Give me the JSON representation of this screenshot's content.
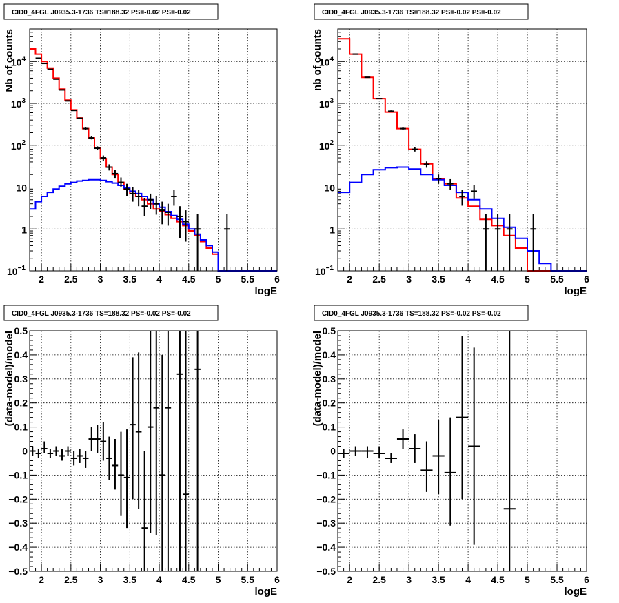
{
  "chart_data": [
    {
      "type": "line",
      "title": "CID0_4FGL J0935.3-1736 TS=188.32 PS=-0.02 PS=-0.02",
      "xlabel": "logE",
      "ylabel": "Nb of counts",
      "xlim": [
        1.8,
        6
      ],
      "ylim": [
        0.1,
        60000
      ],
      "yscale": "log",
      "grid": true,
      "xticks": [
        "2",
        "2.5",
        "3",
        "3.5",
        "4",
        "4.5",
        "5",
        "5.5",
        "6"
      ],
      "yticks": [
        {
          "mantissa": "10",
          "exp": "−1"
        },
        {
          "mantissa": "1",
          "exp": ""
        },
        {
          "mantissa": "10",
          "exp": ""
        },
        {
          "mantissa": "10",
          "exp": "2"
        },
        {
          "mantissa": "10",
          "exp": "3"
        },
        {
          "mantissa": "10",
          "exp": "4"
        }
      ],
      "bin_edges": [
        1.8,
        1.9,
        2.0,
        2.1,
        2.2,
        2.3,
        2.4,
        2.5,
        2.6,
        2.7,
        2.8,
        2.9,
        3.0,
        3.1,
        3.2,
        3.3,
        3.4,
        3.5,
        3.6,
        3.7,
        3.8,
        3.9,
        4.0,
        4.1,
        4.2,
        4.3,
        4.4,
        4.5,
        4.6,
        4.7,
        4.8,
        4.9,
        5.0,
        5.1,
        5.2,
        5.3,
        5.4,
        5.5,
        5.6,
        5.7,
        5.8,
        5.9,
        6.0
      ],
      "series": [
        {
          "color": "#ff0000",
          "values": [
            20000,
            15000,
            10000,
            7000,
            4000,
            2200,
            1200,
            700,
            450,
            250,
            150,
            85,
            48,
            30,
            20,
            13,
            9,
            7,
            6,
            5,
            4,
            3,
            2.6,
            2.2,
            1.8,
            1.5,
            1.2,
            0.9,
            0.7,
            0.5,
            0.35,
            0.25,
            0.1,
            0.1,
            0.1,
            0.1,
            0.1,
            0.1,
            0.1,
            0.1,
            0.1,
            0.1
          ]
        },
        {
          "color": "#0000ff",
          "values": [
            3,
            4.5,
            6,
            7.5,
            9,
            10.5,
            12,
            13,
            14,
            14.5,
            15,
            15,
            14.5,
            13.5,
            12.5,
            11,
            9.5,
            8,
            7,
            6,
            5,
            4,
            3.3,
            2.6,
            2.1,
            1.7,
            1.3,
            1.0,
            0.75,
            0.55,
            0.4,
            0.28,
            0.1,
            0.1,
            0.1,
            0.1,
            0.1,
            0.1,
            0.1,
            0.1,
            0.1,
            0.1
          ]
        }
      ],
      "points": [
        {
          "x": 1.95,
          "y": 12000,
          "lo": 11800,
          "hi": 12200
        },
        {
          "x": 2.05,
          "y": 9000,
          "lo": 8850,
          "hi": 9150
        },
        {
          "x": 2.15,
          "y": 6500,
          "lo": 6400,
          "hi": 6600
        },
        {
          "x": 2.25,
          "y": 3800,
          "lo": 3700,
          "hi": 3900
        },
        {
          "x": 2.35,
          "y": 2100,
          "lo": 2050,
          "hi": 2150
        },
        {
          "x": 2.45,
          "y": 1150,
          "lo": 1120,
          "hi": 1180
        },
        {
          "x": 2.55,
          "y": 680,
          "lo": 660,
          "hi": 700
        },
        {
          "x": 2.65,
          "y": 440,
          "lo": 420,
          "hi": 460
        },
        {
          "x": 2.75,
          "y": 250,
          "lo": 235,
          "hi": 265
        },
        {
          "x": 2.85,
          "y": 150,
          "lo": 138,
          "hi": 162
        },
        {
          "x": 2.95,
          "y": 85,
          "lo": 76,
          "hi": 94
        },
        {
          "x": 3.05,
          "y": 50,
          "lo": 43,
          "hi": 57
        },
        {
          "x": 3.15,
          "y": 30,
          "lo": 25,
          "hi": 35
        },
        {
          "x": 3.25,
          "y": 21,
          "lo": 16,
          "hi": 26
        },
        {
          "x": 3.35,
          "y": 13,
          "lo": 10,
          "hi": 17
        },
        {
          "x": 3.45,
          "y": 9,
          "lo": 6,
          "hi": 12
        },
        {
          "x": 3.55,
          "y": 7,
          "lo": 4.5,
          "hi": 10
        },
        {
          "x": 3.65,
          "y": 6,
          "lo": 3.5,
          "hi": 8.5
        },
        {
          "x": 3.75,
          "y": 3.5,
          "lo": 2,
          "hi": 5.5
        },
        {
          "x": 3.85,
          "y": 5,
          "lo": 3,
          "hi": 7
        },
        {
          "x": 3.95,
          "y": 4,
          "lo": 2.2,
          "hi": 6
        },
        {
          "x": 4.05,
          "y": 2.8,
          "lo": 1.3,
          "hi": 4.5
        },
        {
          "x": 4.15,
          "y": 2.5,
          "lo": 1.2,
          "hi": 4
        },
        {
          "x": 4.25,
          "y": 6,
          "lo": 3.6,
          "hi": 8.5
        },
        {
          "x": 4.35,
          "y": 2,
          "lo": 0.6,
          "hi": 3.5
        },
        {
          "x": 4.45,
          "y": 1.5,
          "lo": 0.5,
          "hi": 2.8
        },
        {
          "x": 4.65,
          "y": 1,
          "lo": 0.1,
          "hi": 2.3
        },
        {
          "x": 5.15,
          "y": 1,
          "lo": 0.1,
          "hi": 2.3
        }
      ]
    },
    {
      "type": "line",
      "title": "CID0_4FGL J0935.3-1736 TS=188.32 PS=-0.02 PS=-0.02",
      "xlabel": "logE",
      "ylabel": "nb of counts",
      "xlim": [
        1.8,
        6
      ],
      "ylim": [
        0.1,
        60000
      ],
      "yscale": "log",
      "grid": true,
      "xticks": [
        "2",
        "2.5",
        "3",
        "3.5",
        "4",
        "4.5",
        "5",
        "5.5",
        "6"
      ],
      "yticks": [
        {
          "mantissa": "10",
          "exp": "−1"
        },
        {
          "mantissa": "1",
          "exp": ""
        },
        {
          "mantissa": "10",
          "exp": ""
        },
        {
          "mantissa": "10",
          "exp": "2"
        },
        {
          "mantissa": "10",
          "exp": "3"
        },
        {
          "mantissa": "10",
          "exp": "4"
        }
      ],
      "bin_edges": [
        1.8,
        2.0,
        2.2,
        2.4,
        2.6,
        2.8,
        3.0,
        3.2,
        3.4,
        3.6,
        3.8,
        4.0,
        4.2,
        4.4,
        4.6,
        4.8,
        5.0,
        5.2,
        5.4,
        5.6,
        5.8,
        6.0
      ],
      "series": [
        {
          "color": "#ff0000",
          "values": [
            35000,
            15000,
            4200,
            1300,
            620,
            250,
            80,
            36,
            16,
            12,
            5.5,
            3.5,
            1.7,
            1.2,
            0.7,
            0.35,
            0.1,
            0.1,
            0.1,
            0.1,
            0.1
          ]
        },
        {
          "color": "#0000ff",
          "values": [
            7.5,
            13,
            20,
            26,
            29,
            30,
            27,
            20,
            15,
            11,
            7.5,
            5,
            3,
            1.8,
            1.1,
            0.6,
            0.3,
            0.15,
            0.1,
            0.1,
            0.1
          ]
        }
      ],
      "points": [
        {
          "x": 2.1,
          "y": 15000,
          "lo": 14800,
          "hi": 15200
        },
        {
          "x": 2.3,
          "y": 4200,
          "lo": 4100,
          "hi": 4300
        },
        {
          "x": 2.5,
          "y": 1300,
          "lo": 1270,
          "hi": 1330
        },
        {
          "x": 2.7,
          "y": 650,
          "lo": 620,
          "hi": 680
        },
        {
          "x": 2.9,
          "y": 250,
          "lo": 235,
          "hi": 265
        },
        {
          "x": 3.1,
          "y": 80,
          "lo": 71,
          "hi": 89
        },
        {
          "x": 3.3,
          "y": 35,
          "lo": 29,
          "hi": 41
        },
        {
          "x": 3.5,
          "y": 16,
          "lo": 12,
          "hi": 20
        },
        {
          "x": 3.7,
          "y": 12,
          "lo": 8.5,
          "hi": 15.5
        },
        {
          "x": 3.9,
          "y": 6,
          "lo": 3.6,
          "hi": 8.5
        },
        {
          "x": 4.1,
          "y": 8,
          "lo": 5.2,
          "hi": 11
        },
        {
          "x": 4.3,
          "y": 1,
          "lo": 0.1,
          "hi": 2.3
        },
        {
          "x": 4.5,
          "y": 1,
          "lo": 0.1,
          "hi": 2.3
        },
        {
          "x": 4.7,
          "y": 1,
          "lo": 0.1,
          "hi": 2.3
        },
        {
          "x": 5.1,
          "y": 1,
          "lo": 0.1,
          "hi": 2.3
        }
      ]
    },
    {
      "type": "scatter",
      "title": "CID0_4FGL J0935.3-1736 TS=188.32 PS=-0.02 PS=-0.02",
      "xlabel": "logE",
      "ylabel": "(data-model)/model",
      "xlim": [
        1.8,
        6
      ],
      "ylim": [
        -0.5,
        0.5
      ],
      "grid": true,
      "xticks": [
        "2",
        "2.5",
        "3",
        "3.5",
        "4",
        "4.5",
        "5",
        "5.5",
        "6"
      ],
      "yticks": [
        "−0.5",
        "−0.4",
        "−0.3",
        "−0.2",
        "−0.1",
        "0",
        "0.1",
        "0.2",
        "0.3",
        "0.4",
        "0.5"
      ],
      "xerr": 0.05,
      "points": [
        {
          "x": 1.85,
          "y": 0.0,
          "lo": -0.02,
          "hi": 0.02
        },
        {
          "x": 1.95,
          "y": -0.01,
          "lo": -0.03,
          "hi": 0.01
        },
        {
          "x": 2.05,
          "y": 0.01,
          "lo": -0.01,
          "hi": 0.04
        },
        {
          "x": 2.15,
          "y": -0.01,
          "lo": -0.03,
          "hi": 0.01
        },
        {
          "x": 2.25,
          "y": 0.0,
          "lo": -0.02,
          "hi": 0.02
        },
        {
          "x": 2.35,
          "y": -0.02,
          "lo": -0.04,
          "hi": 0.01
        },
        {
          "x": 2.45,
          "y": 0.0,
          "lo": -0.02,
          "hi": 0.02
        },
        {
          "x": 2.55,
          "y": -0.03,
          "lo": -0.06,
          "hi": 0.0
        },
        {
          "x": 2.65,
          "y": -0.02,
          "lo": -0.05,
          "hi": 0.01
        },
        {
          "x": 2.75,
          "y": -0.03,
          "lo": -0.07,
          "hi": 0.0
        },
        {
          "x": 2.85,
          "y": 0.05,
          "lo": 0.0,
          "hi": 0.1
        },
        {
          "x": 2.95,
          "y": 0.05,
          "lo": -0.01,
          "hi": 0.11
        },
        {
          "x": 3.05,
          "y": 0.04,
          "lo": -0.04,
          "hi": 0.12
        },
        {
          "x": 3.15,
          "y": -0.03,
          "lo": -0.12,
          "hi": 0.06
        },
        {
          "x": 3.25,
          "y": -0.06,
          "lo": -0.16,
          "hi": 0.05
        },
        {
          "x": 3.35,
          "y": -0.1,
          "lo": -0.27,
          "hi": 0.08
        },
        {
          "x": 3.45,
          "y": -0.11,
          "lo": -0.32,
          "hi": 0.09
        },
        {
          "x": 3.55,
          "y": 0.11,
          "lo": -0.2,
          "hi": 0.39
        },
        {
          "x": 3.65,
          "y": 0.08,
          "lo": -0.24,
          "hi": 0.41
        },
        {
          "x": 3.75,
          "y": -0.32,
          "lo": -0.5,
          "hi": 0.0
        },
        {
          "x": 3.85,
          "y": 0.1,
          "lo": -0.34,
          "hi": 0.5
        },
        {
          "x": 3.95,
          "y": 0.18,
          "lo": -0.35,
          "hi": 0.5
        },
        {
          "x": 4.05,
          "y": -0.1,
          "lo": -0.5,
          "hi": 0.4
        },
        {
          "x": 4.15,
          "y": 0.18,
          "lo": -0.5,
          "hi": 0.5
        },
        {
          "x": 4.35,
          "y": 0.32,
          "lo": -0.5,
          "hi": 0.5
        },
        {
          "x": 4.45,
          "y": -0.18,
          "lo": -0.5,
          "hi": 0.5
        },
        {
          "x": 4.65,
          "y": 0.34,
          "lo": -0.5,
          "hi": 0.5
        }
      ]
    },
    {
      "type": "scatter",
      "title": "CID0_4FGL J0935.3-1736 TS=188.32 PS=-0.02 PS=-0.02",
      "xlabel": "logE",
      "ylabel": "(data-model)/model",
      "xlim": [
        1.8,
        6
      ],
      "ylim": [
        -0.5,
        0.5
      ],
      "grid": true,
      "xticks": [
        "2",
        "2.5",
        "3",
        "3.5",
        "4",
        "4.5",
        "5",
        "5.5",
        "6"
      ],
      "yticks": [
        "−0.5",
        "−0.4",
        "−0.3",
        "−0.2",
        "−0.1",
        "0",
        "0.1",
        "0.2",
        "0.3",
        "0.4",
        "0.5"
      ],
      "xerr": 0.1,
      "points": [
        {
          "x": 1.9,
          "y": -0.01,
          "lo": -0.03,
          "hi": 0.01
        },
        {
          "x": 2.1,
          "y": 0.0,
          "lo": -0.02,
          "hi": 0.02
        },
        {
          "x": 2.3,
          "y": 0.0,
          "lo": -0.03,
          "hi": 0.02
        },
        {
          "x": 2.5,
          "y": -0.01,
          "lo": -0.03,
          "hi": 0.02
        },
        {
          "x": 2.7,
          "y": -0.03,
          "lo": -0.05,
          "hi": -0.01
        },
        {
          "x": 2.9,
          "y": 0.05,
          "lo": 0.01,
          "hi": 0.09
        },
        {
          "x": 3.1,
          "y": 0.01,
          "lo": -0.05,
          "hi": 0.07
        },
        {
          "x": 3.3,
          "y": -0.08,
          "lo": -0.17,
          "hi": 0.04
        },
        {
          "x": 3.5,
          "y": -0.02,
          "lo": -0.18,
          "hi": 0.13
        },
        {
          "x": 3.7,
          "y": -0.09,
          "lo": -0.31,
          "hi": 0.14
        },
        {
          "x": 3.9,
          "y": 0.14,
          "lo": -0.2,
          "hi": 0.48
        },
        {
          "x": 4.1,
          "y": 0.02,
          "lo": -0.39,
          "hi": 0.43
        },
        {
          "x": 4.7,
          "y": -0.24,
          "lo": -0.5,
          "hi": 0.5
        }
      ]
    }
  ]
}
